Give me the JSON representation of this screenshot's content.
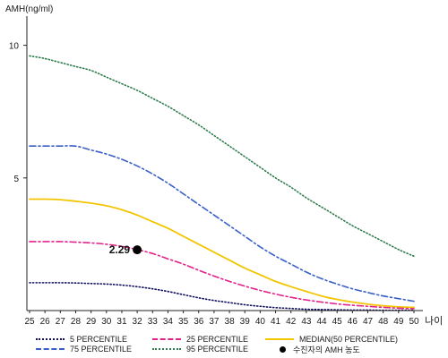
{
  "chart_data": {
    "type": "line",
    "ylabel": "AMH(ng/ml)",
    "xlabel": "나이",
    "x": [
      25,
      26,
      27,
      28,
      29,
      30,
      31,
      32,
      33,
      34,
      35,
      36,
      37,
      38,
      39,
      40,
      41,
      42,
      43,
      44,
      45,
      46,
      47,
      48,
      49,
      50
    ],
    "x_tick_labels": [
      "25",
      "26",
      "27",
      "28",
      "29",
      "30",
      "31",
      "32",
      "33",
      "34",
      "35",
      "36",
      "37",
      "38",
      "39",
      "40",
      "41",
      "42",
      "43",
      "44",
      "45",
      "46",
      "47",
      "48",
      "49",
      "50"
    ],
    "y_ticks": [
      5,
      10
    ],
    "y_tick_labels": [
      "5",
      "10"
    ],
    "ylim": [
      0,
      11.1
    ],
    "xlim": [
      25,
      50
    ],
    "grid": false,
    "legend_position": "bottom",
    "series": [
      {
        "name": "95 PERCENTILE",
        "style": "dotted",
        "color": "#2e7d4f",
        "values": [
          9.6,
          9.5,
          9.35,
          9.2,
          9.05,
          8.8,
          8.55,
          8.3,
          8.0,
          7.7,
          7.35,
          7.0,
          6.6,
          6.2,
          5.8,
          5.4,
          5.0,
          4.65,
          4.25,
          3.9,
          3.55,
          3.2,
          2.9,
          2.6,
          2.3,
          2.05
        ]
      },
      {
        "name": "75 PERCENTILE",
        "style": "dashdot",
        "color": "#3a5fc8",
        "values": [
          6.2,
          6.2,
          6.2,
          6.2,
          6.05,
          5.9,
          5.7,
          5.45,
          5.15,
          4.8,
          4.4,
          4.0,
          3.6,
          3.2,
          2.8,
          2.4,
          2.05,
          1.75,
          1.45,
          1.2,
          1.0,
          0.82,
          0.68,
          0.55,
          0.45,
          0.35
        ]
      },
      {
        "name": "MEDIAN(50 PERCENTILE)",
        "style": "solid",
        "color": "#f2c500",
        "values": [
          4.2,
          4.2,
          4.18,
          4.12,
          4.05,
          3.95,
          3.8,
          3.6,
          3.35,
          3.1,
          2.8,
          2.5,
          2.2,
          1.9,
          1.6,
          1.35,
          1.1,
          0.9,
          0.72,
          0.55,
          0.42,
          0.32,
          0.24,
          0.18,
          0.14,
          0.12
        ]
      },
      {
        "name": "25 PERCENTILE",
        "style": "dashdot",
        "color": "#e0228a",
        "values": [
          2.6,
          2.6,
          2.6,
          2.58,
          2.55,
          2.5,
          2.42,
          2.3,
          2.15,
          1.95,
          1.75,
          1.52,
          1.3,
          1.1,
          0.92,
          0.76,
          0.62,
          0.5,
          0.4,
          0.32,
          0.25,
          0.2,
          0.16,
          0.12,
          0.09,
          0.07
        ]
      },
      {
        "name": "5 PERCENTILE",
        "style": "dotted",
        "color": "#101060",
        "values": [
          1.05,
          1.05,
          1.05,
          1.04,
          1.02,
          1.0,
          0.96,
          0.9,
          0.82,
          0.72,
          0.6,
          0.48,
          0.38,
          0.3,
          0.22,
          0.16,
          0.11,
          0.08,
          0.05,
          0.04,
          0.03,
          0.02,
          0.02,
          0.01,
          0.01,
          0.01
        ]
      }
    ],
    "points": [
      {
        "name": "수진자의 AMH 농도",
        "x": 32,
        "y": 2.29,
        "label": "2.29",
        "color": "#000000"
      }
    ],
    "legend": [
      {
        "label": "5 PERCENTILE",
        "series": "5 PERCENTILE"
      },
      {
        "label": "25 PERCENTILE",
        "series": "25 PERCENTILE"
      },
      {
        "label": "MEDIAN(50 PERCENTILE)",
        "series": "MEDIAN(50 PERCENTILE)"
      },
      {
        "label": "75 PERCENTILE",
        "series": "75 PERCENTILE"
      },
      {
        "label": "95 PERCENTILE",
        "series": "95 PERCENTILE"
      },
      {
        "label": "수진자의 AMH 농도",
        "marker": "dot"
      }
    ]
  }
}
